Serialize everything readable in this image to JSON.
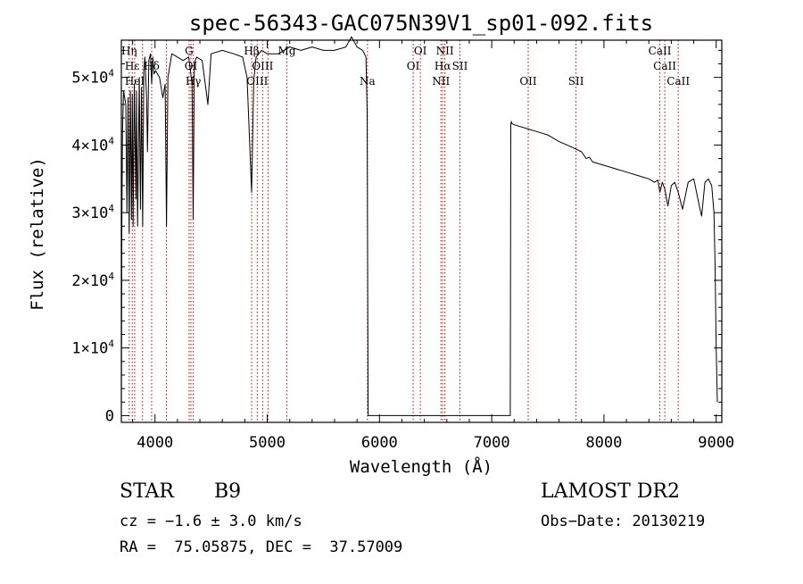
{
  "chart_data": {
    "type": "line",
    "title": "spec-56343-GAC075N39V1_sp01-092.fits",
    "xlabel": "Wavelength (Å)",
    "ylabel": "Flux (relative)",
    "xlim": [
      3700,
      9050
    ],
    "ylim": [
      -1000,
      55500
    ],
    "x_ticks": [
      {
        "value": 4000,
        "label": "4000"
      },
      {
        "value": 5000,
        "label": "5000"
      },
      {
        "value": 6000,
        "label": "6000"
      },
      {
        "value": 7000,
        "label": "7000"
      },
      {
        "value": 8000,
        "label": "8000"
      },
      {
        "value": 9000,
        "label": "9000"
      }
    ],
    "y_ticks": [
      {
        "value": 0,
        "label": "0",
        "mantissa": "",
        "exp": ""
      },
      {
        "value": 10000,
        "label": "1×10⁴",
        "mantissa": "1×10",
        "exp": "4"
      },
      {
        "value": 20000,
        "label": "2×10⁴",
        "mantissa": "2×10",
        "exp": "4"
      },
      {
        "value": 30000,
        "label": "3×10⁴",
        "mantissa": "3×10",
        "exp": "4"
      },
      {
        "value": 40000,
        "label": "4×10⁴",
        "mantissa": "4×10",
        "exp": "4"
      },
      {
        "value": 50000,
        "label": "5×10⁴",
        "mantissa": "5×10",
        "exp": "4"
      }
    ],
    "grid": false,
    "series": [
      {
        "x": [
          3700,
          3705,
          3710,
          3720,
          3740,
          3750,
          3760,
          3770,
          3780,
          3790,
          3798,
          3805,
          3815,
          3830,
          3835,
          3845,
          3860,
          3870,
          3880,
          3890,
          3900,
          3910,
          3925,
          3933,
          3945,
          3960,
          3970,
          3980,
          3990,
          4005,
          4040,
          4070,
          4090,
          4102,
          4115,
          4150,
          4200,
          4250,
          4300,
          4330,
          4340,
          4350,
          4370,
          4420,
          4471,
          4500,
          4600,
          4700,
          4780,
          4820,
          4861,
          4880,
          4900,
          4950,
          5000,
          5100,
          5200,
          5300,
          5400,
          5500,
          5600,
          5700,
          5750,
          5800,
          5850,
          5880,
          5890,
          5895,
          5898,
          5900,
          5905,
          5910,
          5920,
          7150,
          7165,
          7170,
          7175,
          7178,
          7200,
          7300,
          7400,
          7500,
          7600,
          7700,
          7800,
          7842,
          7870,
          7900,
          8000,
          8100,
          8200,
          8300,
          8400,
          8450,
          8480,
          8498,
          8520,
          8542,
          8570,
          8600,
          8630,
          8662,
          8700,
          8750,
          8800,
          8850,
          8870,
          8900,
          8930,
          8960,
          8980,
          8990,
          9000,
          9010
        ],
        "y": [
          500,
          28500,
          42000,
          48000,
          46000,
          30000,
          47000,
          27000,
          48000,
          29000,
          47500,
          28000,
          49000,
          32000,
          48000,
          28000,
          50000,
          30500,
          48500,
          28000,
          51000,
          53000,
          47000,
          39000,
          52500,
          53500,
          49000,
          53000,
          50500,
          51000,
          50000,
          47000,
          49000,
          28000,
          50000,
          53500,
          53000,
          52500,
          53000,
          49000,
          29000,
          52000,
          53000,
          52500,
          46000,
          53500,
          54000,
          53500,
          53000,
          50000,
          33000,
          49500,
          53000,
          54000,
          53500,
          53500,
          54500,
          54000,
          54500,
          54000,
          54000,
          54500,
          56000,
          54500,
          54000,
          53000,
          45000,
          20000,
          2000,
          0,
          0,
          0,
          0,
          0,
          0,
          43000,
          43500,
          43200,
          43000,
          42500,
          42000,
          41500,
          40500,
          39800,
          39000,
          38000,
          38200,
          37500,
          37000,
          36500,
          36000,
          35500,
          35000,
          34500,
          34800,
          33000,
          34500,
          33500,
          31000,
          34000,
          34500,
          33000,
          30500,
          34500,
          35000,
          31000,
          29500,
          34500,
          35000,
          34000,
          30000,
          22000,
          10000,
          2000
        ]
      }
    ],
    "lines": [
      {
        "x": 3770,
        "label": "Hη",
        "tier": 0
      },
      {
        "x": 3797,
        "label": "Hε",
        "tier": 1
      },
      {
        "x": 3819,
        "label": "HeI",
        "tier": 2
      },
      {
        "x": 3889,
        "label": "",
        "tier": -1
      },
      {
        "x": 3970,
        "label": "Hδ",
        "tier": 1
      },
      {
        "x": 4102,
        "label": "",
        "tier": -1
      },
      {
        "x": 4304,
        "label": "G",
        "tier": 0
      },
      {
        "x": 4320,
        "label": "OI",
        "tier": 1
      },
      {
        "x": 4341,
        "label": "Hγ",
        "tier": 2
      },
      {
        "x": 4861,
        "label": "Hβ",
        "tier": 0
      },
      {
        "x": 4959,
        "label": "OIII",
        "tier": 1
      },
      {
        "x": 4911,
        "label": "OIII",
        "tier": 2
      },
      {
        "x": 5007,
        "label": "",
        "tier": -1
      },
      {
        "x": 5175,
        "label": "Mg",
        "tier": 0
      },
      {
        "x": 5893,
        "label": "Na",
        "tier": 2
      },
      {
        "x": 6300,
        "label": "OI",
        "tier": 1
      },
      {
        "x": 6364,
        "label": "OI",
        "tier": 0
      },
      {
        "x": 6548,
        "label": "NII",
        "tier": 2
      },
      {
        "x": 6563,
        "label": "Hα",
        "tier": 1
      },
      {
        "x": 6583,
        "label": "NII",
        "tier": 0
      },
      {
        "x": 6717,
        "label": "SII",
        "tier": 1
      },
      {
        "x": 7325,
        "label": "OII",
        "tier": 2
      },
      {
        "x": 7751,
        "label": "SII",
        "tier": 2
      },
      {
        "x": 8498,
        "label": "CaII",
        "tier": 0
      },
      {
        "x": 8542,
        "label": "CaII",
        "tier": 1
      },
      {
        "x": 8662,
        "label": "CaII",
        "tier": 2
      }
    ]
  },
  "info": {
    "class_label": "STAR",
    "subclass": "B9",
    "survey": "LAMOST DR2",
    "cz_line": "cz = −1.6 ± 3.0 km/s",
    "obs_date": "Obs−Date: 20130219",
    "radec_line": "RA =  75.05875, DEC =  37.57009"
  },
  "colors": {
    "spectrum": "#000000",
    "line_markers": "#cc0000",
    "axes": "#000000"
  }
}
